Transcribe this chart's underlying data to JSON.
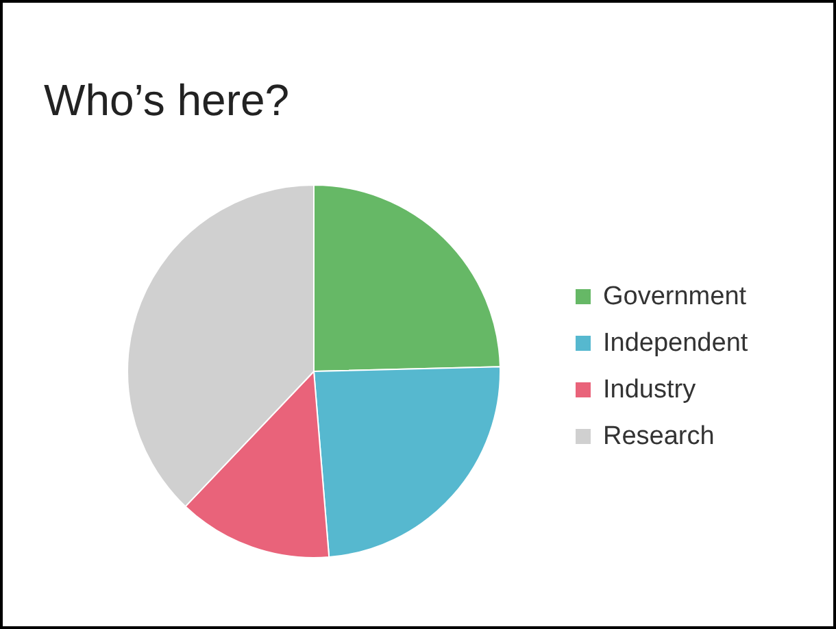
{
  "chart_data": {
    "type": "pie",
    "title": "Who’s here?",
    "categories": [
      "Government",
      "Independent",
      "Industry",
      "Research"
    ],
    "values": [
      24.6,
      24.1,
      13.4,
      37.9
    ],
    "colors": [
      "#66b866",
      "#56b8cf",
      "#e9637a",
      "#d0d0d0"
    ],
    "legend": "right"
  }
}
